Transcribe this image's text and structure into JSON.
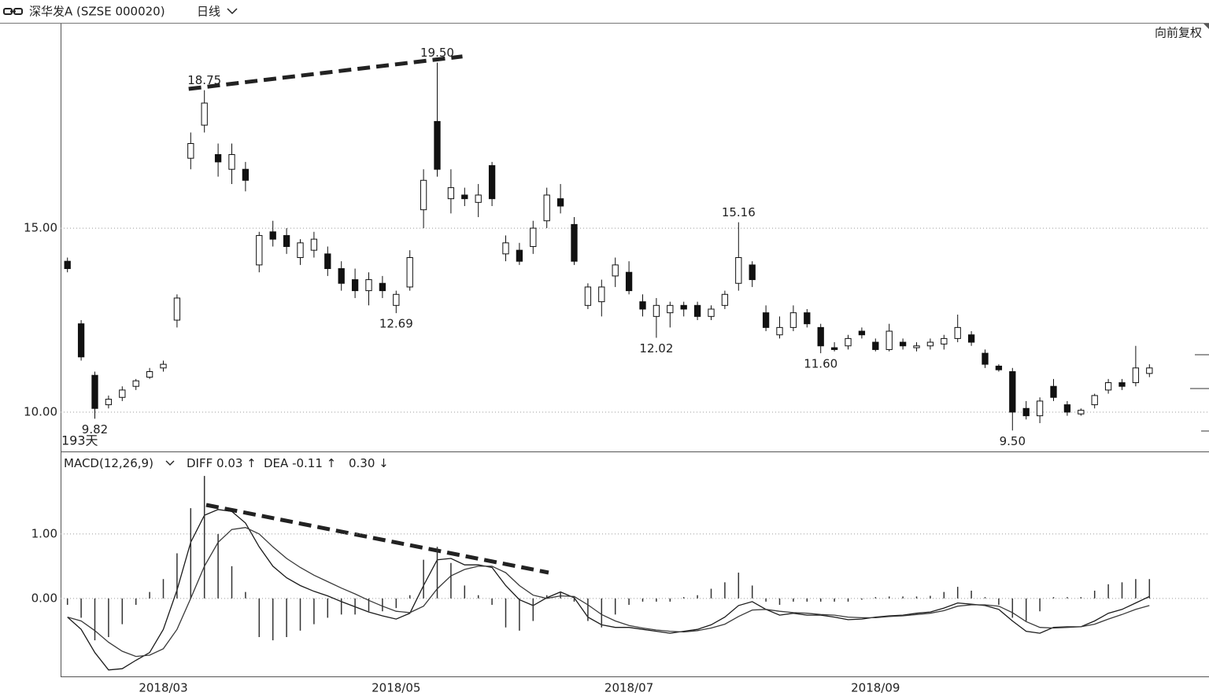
{
  "header": {
    "title": "深华发A (SZSE 000020)",
    "period": "日线",
    "adjust": "向前复权"
  },
  "chart_data": [
    {
      "type": "candlestick",
      "range_label": "193天",
      "up_color": "#ffffff",
      "down_color": "#111111",
      "wick_color": "#111111",
      "ylim": [
        8.93,
        20.56
      ],
      "yticks": [
        {
          "value": 10,
          "label": "10.00"
        },
        {
          "value": 15,
          "label": "15.00"
        }
      ],
      "grid": true,
      "open": [
        14.1,
        12.4,
        11.0,
        10.2,
        10.4,
        10.7,
        10.95,
        11.2,
        12.5,
        16.9,
        17.8,
        17.0,
        16.6,
        16.6,
        14.0,
        14.9,
        14.8,
        14.2,
        14.4,
        14.3,
        13.9,
        13.6,
        13.3,
        13.5,
        12.9,
        13.4,
        15.5,
        17.9,
        15.8,
        15.9,
        15.7,
        16.7,
        14.3,
        14.4,
        14.5,
        15.2,
        15.8,
        15.1,
        12.9,
        13.0,
        13.7,
        13.8,
        13.0,
        12.6,
        12.7,
        12.9,
        12.9,
        12.6,
        12.9,
        13.5,
        14.0,
        12.7,
        12.1,
        12.3,
        12.7,
        12.3,
        11.75,
        11.8,
        12.2,
        11.9,
        11.7,
        11.9,
        11.75,
        11.8,
        11.85,
        12.0,
        12.1,
        11.6,
        11.25,
        11.1,
        10.1,
        9.9,
        10.7,
        10.2,
        9.95,
        10.2,
        10.6,
        10.8,
        10.8,
        11.05
      ],
      "high": [
        14.2,
        12.5,
        11.1,
        10.45,
        10.7,
        10.9,
        11.2,
        11.4,
        13.2,
        17.6,
        18.75,
        17.3,
        17.3,
        16.8,
        14.9,
        15.2,
        15.0,
        14.7,
        14.9,
        14.5,
        14.1,
        13.9,
        13.8,
        13.7,
        13.3,
        14.4,
        16.6,
        19.5,
        16.6,
        16.1,
        16.2,
        16.8,
        14.8,
        14.6,
        15.2,
        16.1,
        16.2,
        15.3,
        13.5,
        13.6,
        14.2,
        14.1,
        13.2,
        13.1,
        13.0,
        13.0,
        13.0,
        12.9,
        13.3,
        15.16,
        14.1,
        12.9,
        12.6,
        12.9,
        12.8,
        12.4,
        11.9,
        12.1,
        12.3,
        12.0,
        12.4,
        12.0,
        11.9,
        12.0,
        12.1,
        12.65,
        12.2,
        11.7,
        11.3,
        11.2,
        10.3,
        10.4,
        10.9,
        10.3,
        10.1,
        10.5,
        10.9,
        10.9,
        11.8,
        11.3
      ],
      "low": [
        13.8,
        11.4,
        9.82,
        10.1,
        10.3,
        10.6,
        10.9,
        11.1,
        12.3,
        16.6,
        17.6,
        16.4,
        16.2,
        16.0,
        13.8,
        14.5,
        14.3,
        14.0,
        14.2,
        13.7,
        13.3,
        13.1,
        12.9,
        13.1,
        12.69,
        13.3,
        15.0,
        16.4,
        15.4,
        15.6,
        15.3,
        15.6,
        14.1,
        14.0,
        14.3,
        15.0,
        15.4,
        14.0,
        12.8,
        12.6,
        13.4,
        13.2,
        12.6,
        12.02,
        12.3,
        12.6,
        12.5,
        12.5,
        12.8,
        13.3,
        13.4,
        12.2,
        12.0,
        12.2,
        12.3,
        11.6,
        11.65,
        11.7,
        12.0,
        11.65,
        11.65,
        11.7,
        11.65,
        11.7,
        11.7,
        11.9,
        11.8,
        11.2,
        11.1,
        9.5,
        9.8,
        9.7,
        10.3,
        9.9,
        9.9,
        10.1,
        10.5,
        10.6,
        10.7,
        10.95
      ],
      "close": [
        13.9,
        11.5,
        10.1,
        10.35,
        10.6,
        10.85,
        11.1,
        11.3,
        13.1,
        17.3,
        18.4,
        16.8,
        17.0,
        16.3,
        14.8,
        14.7,
        14.5,
        14.6,
        14.7,
        13.9,
        13.5,
        13.3,
        13.6,
        13.3,
        13.2,
        14.2,
        16.3,
        16.6,
        16.1,
        15.8,
        15.9,
        15.8,
        14.6,
        14.1,
        15.0,
        15.9,
        15.6,
        14.1,
        13.4,
        13.4,
        14.0,
        13.3,
        12.8,
        12.9,
        12.9,
        12.8,
        12.6,
        12.8,
        13.2,
        14.2,
        13.6,
        12.3,
        12.3,
        12.7,
        12.4,
        11.8,
        11.7,
        12.0,
        12.1,
        11.7,
        12.2,
        11.8,
        11.8,
        11.9,
        12.0,
        12.3,
        11.9,
        11.3,
        11.15,
        10.0,
        9.9,
        10.3,
        10.4,
        10.0,
        10.05,
        10.45,
        10.8,
        10.7,
        11.2,
        11.2
      ],
      "annotations": [
        {
          "value": 18.75,
          "label": "18.75"
        },
        {
          "value": 19.5,
          "label": "19.50"
        },
        {
          "value": 12.69,
          "label": "12.69"
        },
        {
          "value": 12.02,
          "label": "12.02"
        },
        {
          "value": 15.16,
          "label": "15.16"
        },
        {
          "value": 11.6,
          "label": "11.60"
        },
        {
          "value": 9.82,
          "label": "9.82"
        },
        {
          "value": 9.5,
          "label": "9.50"
        }
      ]
    },
    {
      "type": "macd",
      "title": "MACD(12,26,9)",
      "categories": [
        null,
        null,
        null,
        null,
        null,
        null,
        null,
        "2018/03",
        null,
        null,
        null,
        null,
        null,
        null,
        null,
        null,
        null,
        null,
        null,
        null,
        null,
        null,
        null,
        null,
        "2018/05",
        null,
        null,
        null,
        null,
        null,
        null,
        null,
        null,
        null,
        null,
        null,
        null,
        null,
        null,
        null,
        null,
        "2018/07",
        null,
        null,
        null,
        null,
        null,
        null,
        null,
        null,
        null,
        null,
        null,
        null,
        null,
        null,
        null,
        null,
        null,
        "2018/09",
        null,
        null,
        null,
        null,
        null,
        null,
        null,
        null,
        null,
        null,
        null,
        null,
        null,
        null,
        null,
        null,
        null,
        null,
        null,
        null
      ],
      "ylim": [
        -1.21,
        2.28
      ],
      "yticks": [
        {
          "value": 0,
          "label": "0.00"
        },
        {
          "value": 1,
          "label": "1.00"
        }
      ],
      "grid": true,
      "series": [
        {
          "name": "DIFF",
          "readout": "0.03 ↑",
          "kind": "line",
          "color": "#1a1a1a",
          "values": [
            -0.29,
            -0.48,
            -0.84,
            -1.11,
            -1.09,
            -0.96,
            -0.84,
            -0.48,
            0.13,
            0.87,
            1.29,
            1.38,
            1.35,
            1.17,
            0.8,
            0.5,
            0.32,
            0.2,
            0.11,
            0.04,
            -0.05,
            -0.13,
            -0.21,
            -0.27,
            -0.32,
            -0.23,
            0.2,
            0.6,
            0.62,
            0.52,
            0.52,
            0.48,
            0.2,
            -0.02,
            -0.11,
            0.01,
            0.1,
            0.01,
            -0.29,
            -0.41,
            -0.45,
            -0.45,
            -0.48,
            -0.51,
            -0.54,
            -0.51,
            -0.48,
            -0.41,
            -0.29,
            -0.11,
            -0.05,
            -0.17,
            -0.26,
            -0.23,
            -0.26,
            -0.26,
            -0.29,
            -0.33,
            -0.32,
            -0.29,
            -0.27,
            -0.26,
            -0.23,
            -0.21,
            -0.15,
            -0.07,
            -0.09,
            -0.11,
            -0.17,
            -0.35,
            -0.51,
            -0.54,
            -0.45,
            -0.44,
            -0.44,
            -0.35,
            -0.23,
            -0.17,
            -0.07,
            0.03
          ]
        },
        {
          "name": "DEA",
          "readout": "-0.11 ↑",
          "kind": "line",
          "color": "#3a3a3a",
          "values": [
            -0.29,
            -0.35,
            -0.5,
            -0.68,
            -0.82,
            -0.9,
            -0.88,
            -0.78,
            -0.48,
            0.0,
            0.5,
            0.87,
            1.07,
            1.1,
            1.0,
            0.8,
            0.62,
            0.48,
            0.36,
            0.26,
            0.16,
            0.07,
            -0.03,
            -0.12,
            -0.2,
            -0.22,
            -0.12,
            0.15,
            0.35,
            0.45,
            0.5,
            0.5,
            0.4,
            0.2,
            0.05,
            0.0,
            0.04,
            0.03,
            -0.1,
            -0.25,
            -0.35,
            -0.42,
            -0.46,
            -0.49,
            -0.51,
            -0.52,
            -0.5,
            -0.46,
            -0.4,
            -0.28,
            -0.18,
            -0.17,
            -0.2,
            -0.22,
            -0.23,
            -0.25,
            -0.26,
            -0.29,
            -0.3,
            -0.3,
            -0.28,
            -0.27,
            -0.25,
            -0.23,
            -0.19,
            -0.12,
            -0.1,
            -0.1,
            -0.12,
            -0.22,
            -0.36,
            -0.45,
            -0.46,
            -0.45,
            -0.44,
            -0.4,
            -0.32,
            -0.25,
            -0.17,
            -0.11
          ]
        },
        {
          "readout": "0.30 ↓",
          "kind": "histogram",
          "color": "#333333",
          "values": [
            -0.1,
            -0.3,
            -0.65,
            -0.6,
            -0.4,
            -0.1,
            0.1,
            0.3,
            0.7,
            1.4,
            1.9,
            1.0,
            0.5,
            0.1,
            -0.6,
            -0.65,
            -0.6,
            -0.5,
            -0.4,
            -0.3,
            -0.25,
            -0.25,
            -0.2,
            -0.2,
            -0.15,
            0.05,
            0.6,
            0.8,
            0.55,
            0.2,
            0.05,
            -0.1,
            -0.45,
            -0.5,
            -0.35,
            0.05,
            0.1,
            -0.05,
            -0.35,
            -0.45,
            -0.25,
            -0.1,
            -0.05,
            -0.05,
            -0.05,
            0.02,
            0.05,
            0.15,
            0.25,
            0.4,
            0.2,
            -0.05,
            -0.1,
            -0.05,
            -0.05,
            -0.05,
            -0.05,
            -0.05,
            -0.02,
            0.02,
            0.03,
            0.03,
            0.03,
            0.04,
            0.1,
            0.18,
            0.12,
            0.02,
            -0.1,
            -0.3,
            -0.35,
            -0.2,
            0.02,
            0.02,
            0.02,
            0.12,
            0.22,
            0.25,
            0.3,
            0.3
          ]
        }
      ]
    }
  ]
}
